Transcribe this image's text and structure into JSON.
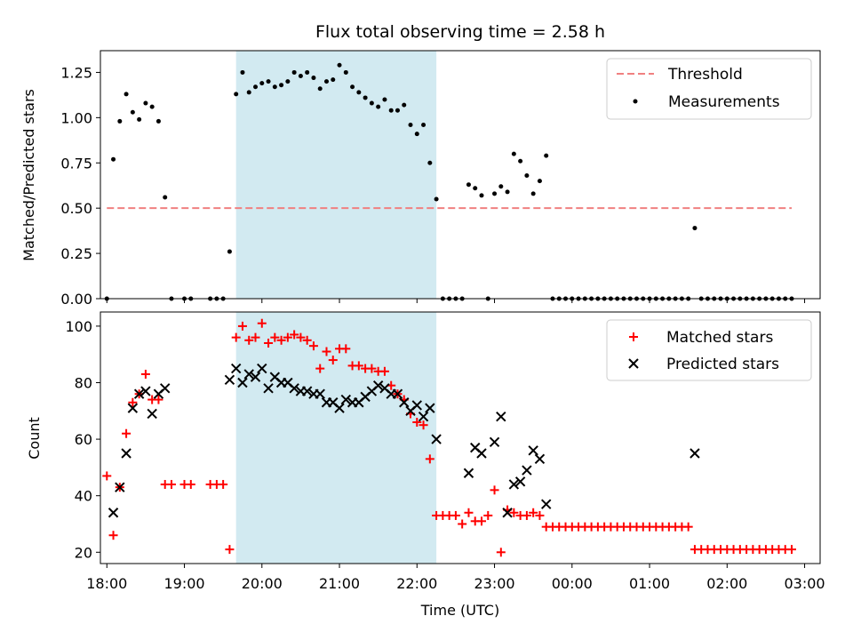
{
  "chart_data": {
    "type": "scatter",
    "title": "Flux total observing time = 2.58 h",
    "xlabel": "Time (UTC)",
    "x_ticks": [
      "18:00",
      "19:00",
      "20:00",
      "21:00",
      "22:00",
      "23:00",
      "00:00",
      "01:00",
      "02:00",
      "03:00"
    ],
    "x_range": [
      "17:55",
      "03:12"
    ],
    "highlight_span": [
      "19:40",
      "22:15"
    ],
    "colors": {
      "highlight": "#add8e6",
      "threshold": "#f08080",
      "matched": "#ff0000",
      "predicted": "#000000",
      "measurements": "#000000"
    },
    "top_panel": {
      "ylabel": "Matched/Predicted stars",
      "ylim": [
        0,
        1.37
      ],
      "y_ticks": [
        "0.00",
        "0.25",
        "0.50",
        "0.75",
        "1.00",
        "1.25"
      ],
      "legend": {
        "placement": "top-right",
        "threshold_label": "Threshold",
        "measurements_label": "Measurements"
      },
      "threshold": {
        "value": 0.5,
        "x_start": "18:00",
        "x_end": "02:50"
      },
      "measurements": [
        [
          "18:00",
          0
        ],
        [
          "18:05",
          0.77
        ],
        [
          "18:10",
          0.98
        ],
        [
          "18:15",
          1.13
        ],
        [
          "18:20",
          1.03
        ],
        [
          "18:25",
          0.99
        ],
        [
          "18:30",
          1.08
        ],
        [
          "18:35",
          1.06
        ],
        [
          "18:40",
          0.98
        ],
        [
          "18:45",
          0.56
        ],
        [
          "18:50",
          0
        ],
        [
          "19:00",
          0
        ],
        [
          "19:05",
          0
        ],
        [
          "19:20",
          0
        ],
        [
          "19:25",
          0
        ],
        [
          "19:30",
          0
        ],
        [
          "19:35",
          0.26
        ],
        [
          "19:40",
          1.13
        ],
        [
          "19:45",
          1.25
        ],
        [
          "19:50",
          1.14
        ],
        [
          "19:55",
          1.17
        ],
        [
          "20:00",
          1.19
        ],
        [
          "20:05",
          1.2
        ],
        [
          "20:10",
          1.17
        ],
        [
          "20:15",
          1.18
        ],
        [
          "20:20",
          1.2
        ],
        [
          "20:25",
          1.25
        ],
        [
          "20:30",
          1.23
        ],
        [
          "20:35",
          1.25
        ],
        [
          "20:40",
          1.22
        ],
        [
          "20:45",
          1.16
        ],
        [
          "20:50",
          1.2
        ],
        [
          "20:55",
          1.21
        ],
        [
          "21:00",
          1.29
        ],
        [
          "21:05",
          1.25
        ],
        [
          "21:10",
          1.17
        ],
        [
          "21:15",
          1.14
        ],
        [
          "21:20",
          1.11
        ],
        [
          "21:25",
          1.08
        ],
        [
          "21:30",
          1.06
        ],
        [
          "21:35",
          1.1
        ],
        [
          "21:40",
          1.04
        ],
        [
          "21:45",
          1.04
        ],
        [
          "21:50",
          1.07
        ],
        [
          "21:55",
          0.96
        ],
        [
          "22:00",
          0.91
        ],
        [
          "22:05",
          0.96
        ],
        [
          "22:10",
          0.75
        ],
        [
          "22:15",
          0.55
        ],
        [
          "22:20",
          0
        ],
        [
          "22:25",
          0
        ],
        [
          "22:30",
          0
        ],
        [
          "22:35",
          0
        ],
        [
          "22:40",
          0.63
        ],
        [
          "22:45",
          0.61
        ],
        [
          "22:50",
          0.57
        ],
        [
          "22:55",
          0
        ],
        [
          "23:00",
          0.58
        ],
        [
          "23:05",
          0.62
        ],
        [
          "23:10",
          0.59
        ],
        [
          "23:15",
          0.8
        ],
        [
          "23:20",
          0.76
        ],
        [
          "23:25",
          0.68
        ],
        [
          "23:30",
          0.58
        ],
        [
          "23:35",
          0.65
        ],
        [
          "23:40",
          0.79
        ],
        [
          "23:45",
          0
        ],
        [
          "23:50",
          0
        ],
        [
          "23:55",
          0
        ],
        [
          "00:00",
          0
        ],
        [
          "00:05",
          0
        ],
        [
          "00:10",
          0
        ],
        [
          "00:15",
          0
        ],
        [
          "00:20",
          0
        ],
        [
          "00:25",
          0
        ],
        [
          "00:30",
          0
        ],
        [
          "00:35",
          0
        ],
        [
          "00:40",
          0
        ],
        [
          "00:45",
          0
        ],
        [
          "00:50",
          0
        ],
        [
          "00:55",
          0
        ],
        [
          "01:00",
          0
        ],
        [
          "01:05",
          0
        ],
        [
          "01:10",
          0
        ],
        [
          "01:15",
          0
        ],
        [
          "01:20",
          0
        ],
        [
          "01:25",
          0
        ],
        [
          "01:30",
          0
        ],
        [
          "01:35",
          0.39
        ],
        [
          "01:40",
          0
        ],
        [
          "01:45",
          0
        ],
        [
          "01:50",
          0
        ],
        [
          "01:55",
          0
        ],
        [
          "02:00",
          0
        ],
        [
          "02:05",
          0
        ],
        [
          "02:10",
          0
        ],
        [
          "02:15",
          0
        ],
        [
          "02:20",
          0
        ],
        [
          "02:25",
          0
        ],
        [
          "02:30",
          0
        ],
        [
          "02:35",
          0
        ],
        [
          "02:40",
          0
        ],
        [
          "02:45",
          0
        ],
        [
          "02:50",
          0
        ]
      ]
    },
    "bottom_panel": {
      "ylabel": "Count",
      "ylim": [
        16,
        105
      ],
      "y_ticks": [
        "20",
        "40",
        "60",
        "80",
        "100"
      ],
      "legend": {
        "placement": "top-right",
        "matched_label": "Matched stars",
        "predicted_label": "Predicted stars"
      },
      "matched_stars": [
        [
          "18:00",
          47
        ],
        [
          "18:05",
          26
        ],
        [
          "18:10",
          43
        ],
        [
          "18:15",
          62
        ],
        [
          "18:20",
          73
        ],
        [
          "18:25",
          76
        ],
        [
          "18:30",
          83
        ],
        [
          "18:35",
          74
        ],
        [
          "18:40",
          74
        ],
        [
          "18:45",
          44
        ],
        [
          "18:50",
          44
        ],
        [
          "19:00",
          44
        ],
        [
          "19:05",
          44
        ],
        [
          "19:20",
          44
        ],
        [
          "19:25",
          44
        ],
        [
          "19:30",
          44
        ],
        [
          "19:35",
          21
        ],
        [
          "19:40",
          96
        ],
        [
          "19:45",
          100
        ],
        [
          "19:50",
          95
        ],
        [
          "19:55",
          96
        ],
        [
          "20:00",
          101
        ],
        [
          "20:05",
          94
        ],
        [
          "20:10",
          96
        ],
        [
          "20:15",
          95
        ],
        [
          "20:20",
          96
        ],
        [
          "20:25",
          97
        ],
        [
          "20:30",
          96
        ],
        [
          "20:35",
          95
        ],
        [
          "20:40",
          93
        ],
        [
          "20:45",
          85
        ],
        [
          "20:50",
          91
        ],
        [
          "20:55",
          88
        ],
        [
          "21:00",
          92
        ],
        [
          "21:05",
          92
        ],
        [
          "21:10",
          86
        ],
        [
          "21:15",
          86
        ],
        [
          "21:20",
          85
        ],
        [
          "21:25",
          85
        ],
        [
          "21:30",
          84
        ],
        [
          "21:35",
          84
        ],
        [
          "21:40",
          79
        ],
        [
          "21:45",
          76
        ],
        [
          "21:50",
          74
        ],
        [
          "21:55",
          69
        ],
        [
          "22:00",
          66
        ],
        [
          "22:05",
          65
        ],
        [
          "22:10",
          53
        ],
        [
          "22:15",
          33
        ],
        [
          "22:20",
          33
        ],
        [
          "22:25",
          33
        ],
        [
          "22:30",
          33
        ],
        [
          "22:35",
          30
        ],
        [
          "22:40",
          34
        ],
        [
          "22:45",
          31
        ],
        [
          "22:50",
          31
        ],
        [
          "22:55",
          33
        ],
        [
          "23:00",
          42
        ],
        [
          "23:05",
          20
        ],
        [
          "23:10",
          35
        ],
        [
          "23:15",
          34
        ],
        [
          "23:20",
          33
        ],
        [
          "23:25",
          33
        ],
        [
          "23:30",
          34
        ],
        [
          "23:35",
          33
        ],
        [
          "23:40",
          29
        ],
        [
          "23:45",
          29
        ],
        [
          "23:50",
          29
        ],
        [
          "23:55",
          29
        ],
        [
          "00:00",
          29
        ],
        [
          "00:05",
          29
        ],
        [
          "00:10",
          29
        ],
        [
          "00:15",
          29
        ],
        [
          "00:20",
          29
        ],
        [
          "00:25",
          29
        ],
        [
          "00:30",
          29
        ],
        [
          "00:35",
          29
        ],
        [
          "00:40",
          29
        ],
        [
          "00:45",
          29
        ],
        [
          "00:50",
          29
        ],
        [
          "00:55",
          29
        ],
        [
          "01:00",
          29
        ],
        [
          "01:05",
          29
        ],
        [
          "01:10",
          29
        ],
        [
          "01:15",
          29
        ],
        [
          "01:20",
          29
        ],
        [
          "01:25",
          29
        ],
        [
          "01:30",
          29
        ],
        [
          "01:35",
          21
        ],
        [
          "01:40",
          21
        ],
        [
          "01:45",
          21
        ],
        [
          "01:50",
          21
        ],
        [
          "01:55",
          21
        ],
        [
          "02:00",
          21
        ],
        [
          "02:05",
          21
        ],
        [
          "02:10",
          21
        ],
        [
          "02:15",
          21
        ],
        [
          "02:20",
          21
        ],
        [
          "02:25",
          21
        ],
        [
          "02:30",
          21
        ],
        [
          "02:35",
          21
        ],
        [
          "02:40",
          21
        ],
        [
          "02:45",
          21
        ],
        [
          "02:50",
          21
        ]
      ],
      "predicted_stars": [
        [
          "18:05",
          34
        ],
        [
          "18:10",
          43
        ],
        [
          "18:15",
          55
        ],
        [
          "18:20",
          71
        ],
        [
          "18:25",
          76
        ],
        [
          "18:30",
          77
        ],
        [
          "18:35",
          69
        ],
        [
          "18:40",
          76
        ],
        [
          "18:45",
          78
        ],
        [
          "19:35",
          81
        ],
        [
          "19:40",
          85
        ],
        [
          "19:45",
          80
        ],
        [
          "19:50",
          83
        ],
        [
          "19:55",
          82
        ],
        [
          "20:00",
          85
        ],
        [
          "20:05",
          78
        ],
        [
          "20:10",
          82
        ],
        [
          "20:15",
          80
        ],
        [
          "20:20",
          80
        ],
        [
          "20:25",
          78
        ],
        [
          "20:30",
          77
        ],
        [
          "20:35",
          77
        ],
        [
          "20:40",
          76
        ],
        [
          "20:45",
          76
        ],
        [
          "20:50",
          73
        ],
        [
          "20:55",
          73
        ],
        [
          "21:00",
          71
        ],
        [
          "21:05",
          74
        ],
        [
          "21:10",
          73
        ],
        [
          "21:15",
          73
        ],
        [
          "21:20",
          75
        ],
        [
          "21:25",
          77
        ],
        [
          "21:30",
          79
        ],
        [
          "21:35",
          78
        ],
        [
          "21:40",
          76
        ],
        [
          "21:45",
          76
        ],
        [
          "21:50",
          73
        ],
        [
          "21:55",
          70
        ],
        [
          "22:00",
          72
        ],
        [
          "22:05",
          68
        ],
        [
          "22:10",
          71
        ],
        [
          "22:15",
          60
        ],
        [
          "22:40",
          48
        ],
        [
          "22:45",
          57
        ],
        [
          "22:50",
          55
        ],
        [
          "23:00",
          59
        ],
        [
          "23:05",
          68
        ],
        [
          "23:10",
          34
        ],
        [
          "23:15",
          44
        ],
        [
          "23:20",
          45
        ],
        [
          "23:25",
          49
        ],
        [
          "23:30",
          56
        ],
        [
          "23:35",
          53
        ],
        [
          "23:40",
          37
        ],
        [
          "01:35",
          55
        ]
      ]
    }
  }
}
